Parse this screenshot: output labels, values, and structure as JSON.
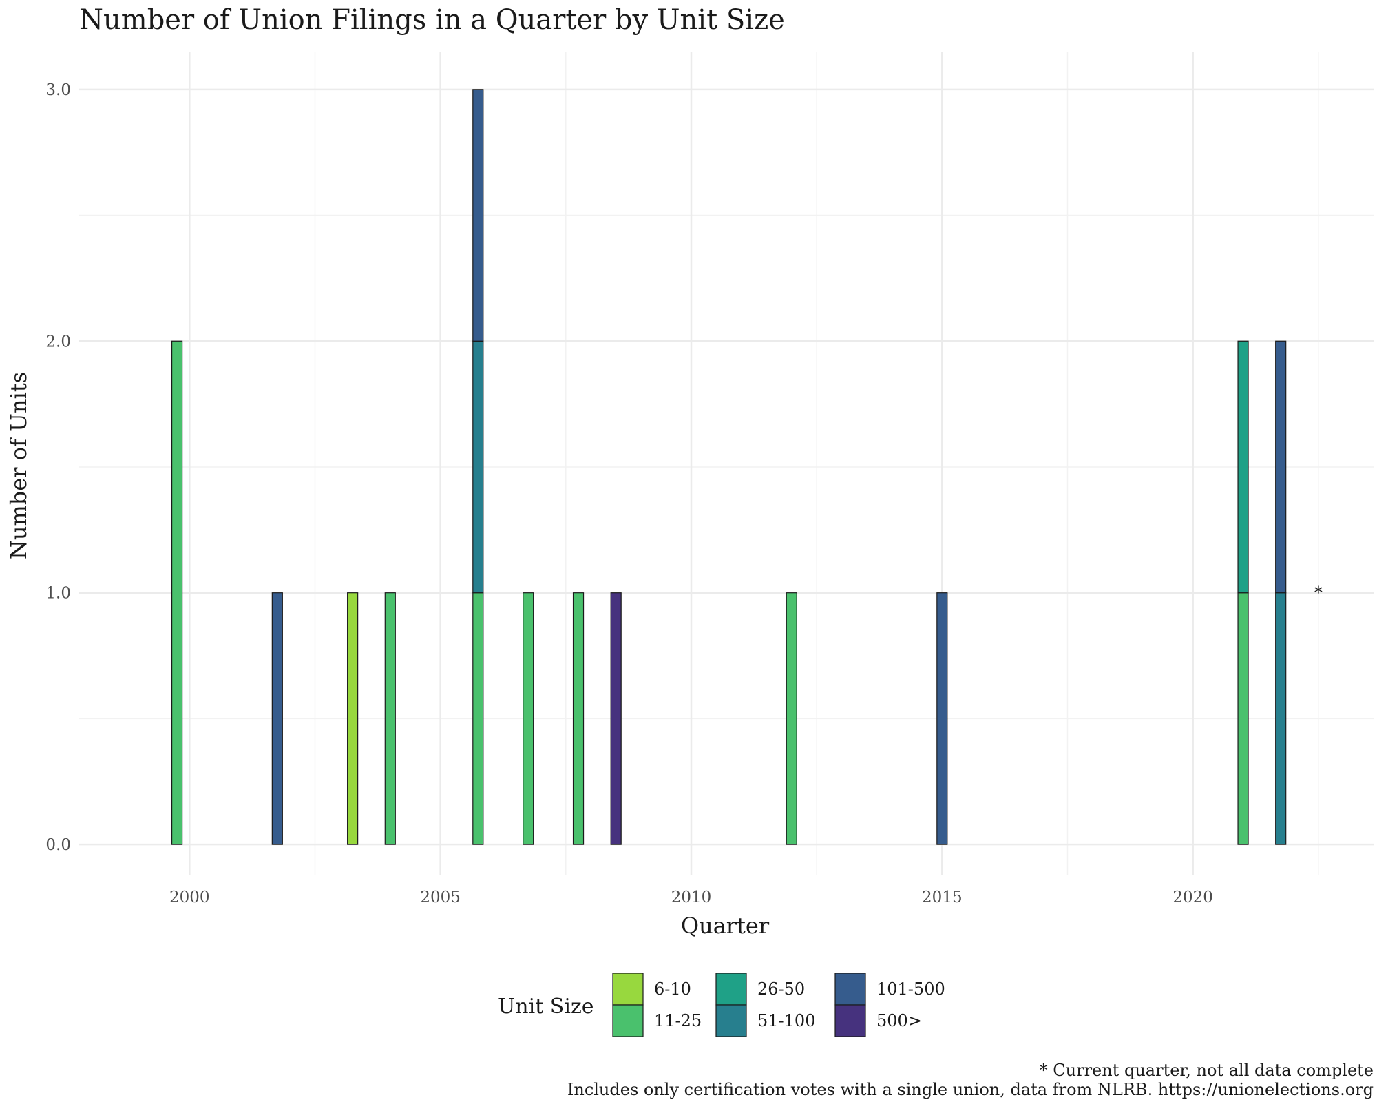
{
  "chart_data": {
    "type": "bar",
    "stacked": true,
    "title": "Number of Union Filings in a Quarter by Unit Size",
    "xlabel": "Quarter",
    "ylabel": "Number of Units",
    "xlim": [
      1997.8,
      2023.6
    ],
    "ylim": [
      -0.12,
      3.15
    ],
    "x_ticks": [
      {
        "value": 2000,
        "label": "2000"
      },
      {
        "value": 2005,
        "label": "2005"
      },
      {
        "value": 2010,
        "label": "2010"
      },
      {
        "value": 2015,
        "label": "2015"
      },
      {
        "value": 2020,
        "label": "2020"
      }
    ],
    "y_ticks": [
      {
        "value": 0,
        "label": "0.0"
      },
      {
        "value": 1,
        "label": "1.0"
      },
      {
        "value": 2,
        "label": "2.0"
      },
      {
        "value": 3,
        "label": "3.0"
      }
    ],
    "grid": true,
    "legend": {
      "title": "Unit Size",
      "position": "bottom",
      "entries": [
        {
          "name": "6-10",
          "color": "#98d83e"
        },
        {
          "name": "11-25",
          "color": "#4ac16d"
        },
        {
          "name": "26-50",
          "color": "#1fa187"
        },
        {
          "name": "51-100",
          "color": "#277f8e"
        },
        {
          "name": "101-500",
          "color": "#365c8d"
        },
        {
          "name": "500>",
          "color": "#46327e"
        }
      ]
    },
    "bars": [
      {
        "x": 1999.75,
        "segments": [
          {
            "series": "11-25",
            "value": 2
          }
        ]
      },
      {
        "x": 2001.75,
        "segments": [
          {
            "series": "101-500",
            "value": 1
          }
        ]
      },
      {
        "x": 2003.25,
        "segments": [
          {
            "series": "6-10",
            "value": 1
          }
        ]
      },
      {
        "x": 2004.0,
        "segments": [
          {
            "series": "11-25",
            "value": 1
          }
        ]
      },
      {
        "x": 2005.75,
        "segments": [
          {
            "series": "11-25",
            "value": 1
          },
          {
            "series": "51-100",
            "value": 1
          },
          {
            "series": "101-500",
            "value": 1
          }
        ]
      },
      {
        "x": 2006.75,
        "segments": [
          {
            "series": "11-25",
            "value": 1
          }
        ]
      },
      {
        "x": 2007.75,
        "segments": [
          {
            "series": "11-25",
            "value": 1
          }
        ]
      },
      {
        "x": 2008.5,
        "segments": [
          {
            "series": "500>",
            "value": 1
          }
        ]
      },
      {
        "x": 2012.0,
        "segments": [
          {
            "series": "11-25",
            "value": 1
          }
        ]
      },
      {
        "x": 2015.0,
        "segments": [
          {
            "series": "101-500",
            "value": 1
          }
        ]
      },
      {
        "x": 2021.0,
        "segments": [
          {
            "series": "11-25",
            "value": 1
          },
          {
            "series": "26-50",
            "value": 1
          }
        ]
      },
      {
        "x": 2021.75,
        "segments": [
          {
            "series": "51-100",
            "value": 1
          },
          {
            "series": "101-500",
            "value": 1
          }
        ]
      }
    ],
    "annotations": [
      {
        "text": "*",
        "x": 2022.5,
        "y": 1.0
      }
    ],
    "captions": [
      "* Current quarter, not all data complete",
      "Includes only certification votes with a single union, data from NLRB. https://unionelections.org"
    ]
  }
}
